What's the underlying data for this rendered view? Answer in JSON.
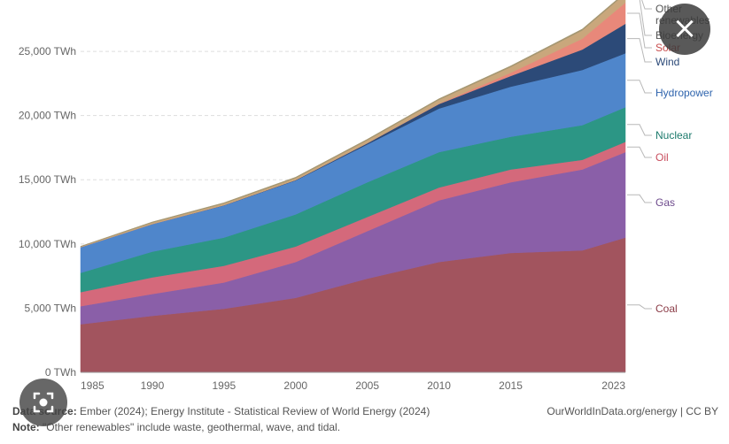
{
  "chart_data": {
    "type": "area",
    "stacked": true,
    "x": [
      1985,
      1990,
      1995,
      2000,
      2005,
      2010,
      2015,
      2020,
      2023
    ],
    "xticks": [
      "1985",
      "1990",
      "1995",
      "2000",
      "2005",
      "2010",
      "2015",
      "2023"
    ],
    "ylim": [
      0,
      29000
    ],
    "yticks": [
      {
        "v": 0,
        "label": "0 TWh"
      },
      {
        "v": 5000,
        "label": "5,000 TWh"
      },
      {
        "v": 10000,
        "label": "10,000 TWh"
      },
      {
        "v": 15000,
        "label": "15,000 TWh"
      },
      {
        "v": 20000,
        "label": "20,000 TWh"
      },
      {
        "v": 25000,
        "label": "25,000 TWh"
      }
    ],
    "grid": true,
    "series": [
      {
        "name": "Coal",
        "color": "#a2545e",
        "values": [
          3750,
          4400,
          4950,
          5800,
          7300,
          8600,
          9300,
          9500,
          10500
        ]
      },
      {
        "name": "Gas",
        "color": "#8a5fa8",
        "values": [
          1400,
          1700,
          2050,
          2800,
          3700,
          4800,
          5500,
          6300,
          6650
        ]
      },
      {
        "name": "Oil",
        "color": "#d4697b",
        "values": [
          1100,
          1300,
          1300,
          1200,
          1100,
          1000,
          1000,
          750,
          800
        ]
      },
      {
        "name": "Nuclear",
        "color": "#2c9685",
        "values": [
          1500,
          2000,
          2200,
          2500,
          2700,
          2750,
          2550,
          2700,
          2700
        ]
      },
      {
        "name": "Hydropower",
        "color": "#4f86cb",
        "values": [
          2000,
          2150,
          2500,
          2650,
          2950,
          3400,
          3900,
          4300,
          4200
        ]
      },
      {
        "name": "Wind",
        "color": "#2c4a78",
        "values": [
          0,
          5,
          20,
          30,
          100,
          350,
          830,
          1590,
          2300
        ]
      },
      {
        "name": "Solar",
        "color": "#e8887a",
        "values": [
          0,
          0,
          0,
          0,
          5,
          30,
          250,
          850,
          1640
        ]
      },
      {
        "name": "Bioenergy",
        "color": "#c9a77c",
        "values": [
          30,
          110,
          130,
          150,
          230,
          300,
          450,
          650,
          700
        ]
      },
      {
        "name": "Other renewables",
        "color": "#a59772",
        "values": [
          40,
          50,
          60,
          70,
          70,
          80,
          90,
          100,
          100
        ]
      }
    ]
  },
  "labels": {
    "Other renewables": [
      "Other",
      "renewables"
    ],
    "Bioenergy": "Bioenergy",
    "Solar": "Solar",
    "Wind": "Wind",
    "Hydropower": "Hydropower",
    "Nuclear": "Nuclear",
    "Oil": "Oil",
    "Gas": "Gas",
    "Coal": "Coal"
  },
  "footer": {
    "source_prefix": "Data source:",
    "source_text": " Ember (2024); Energy Institute - Statistical Review of World Energy (2024)",
    "note_prefix": "Note:",
    "note_text": " \"Other renewables\" include waste, geothermal, wave, and tidal.",
    "credit": "OurWorldInData.org/energy | CC BY"
  },
  "overlay": {
    "close_icon": "×"
  }
}
